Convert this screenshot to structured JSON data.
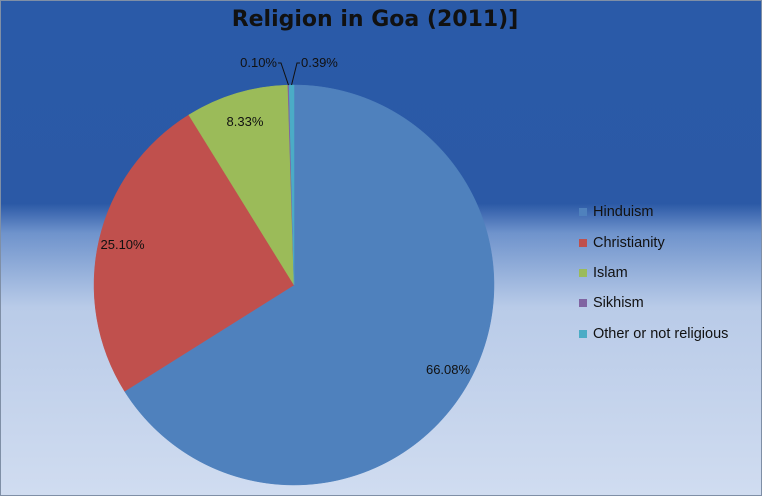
{
  "chart_data": {
    "type": "pie",
    "title": "Religion in Goa (2011)]",
    "categories": [
      "Hinduism",
      "Christianity",
      "Islam",
      "Sikhism",
      "Other or not religious"
    ],
    "values": [
      66.08,
      25.1,
      8.33,
      0.1,
      0.39
    ],
    "labels": [
      "66.08%",
      "25.10%",
      "8.33%",
      "0.10%",
      "0.39%"
    ],
    "colors": [
      "#4f81bd",
      "#c0504d",
      "#9bbb59",
      "#8064a2",
      "#4bacc6"
    ],
    "legend_position": "right"
  }
}
